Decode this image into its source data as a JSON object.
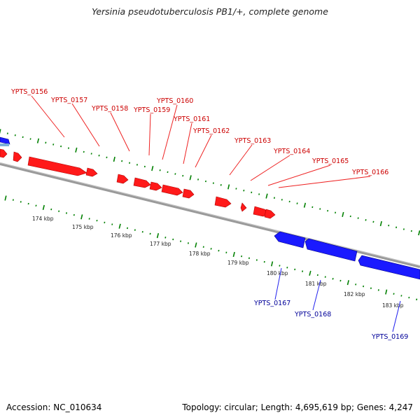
{
  "title": "Yersinia pseudotuberculosis PB1/+, complete genome",
  "footer": {
    "accession": "Accession: NC_010634",
    "summary": "Topology: circular; Length: 4,695,619 bp; Genes: 4,247"
  },
  "colors": {
    "forward_gene": "#ff0000",
    "reverse_gene": "#0000ff",
    "backbone": "#808080",
    "tick": "#008000",
    "forward_label": "#cc0000",
    "reverse_label": "#000099"
  },
  "scale": {
    "unit": "kbp",
    "labels": [
      "174 kbp",
      "175 kbp",
      "176 kbp",
      "177 kbp",
      "178 kbp",
      "179 kbp",
      "180 kbp",
      "181 kbp",
      "182 kbp",
      "183 kbp"
    ]
  },
  "forward_genes": [
    "YPTS_0156",
    "YPTS_0157",
    "YPTS_0158",
    "YPTS_0159",
    "YPTS_0160",
    "YPTS_0161",
    "YPTS_0162",
    "YPTS_0163",
    "YPTS_0164",
    "YPTS_0165",
    "YPTS_0166"
  ],
  "reverse_genes": [
    "YPTS_0167",
    "YPTS_0168",
    "YPTS_0169"
  ]
}
